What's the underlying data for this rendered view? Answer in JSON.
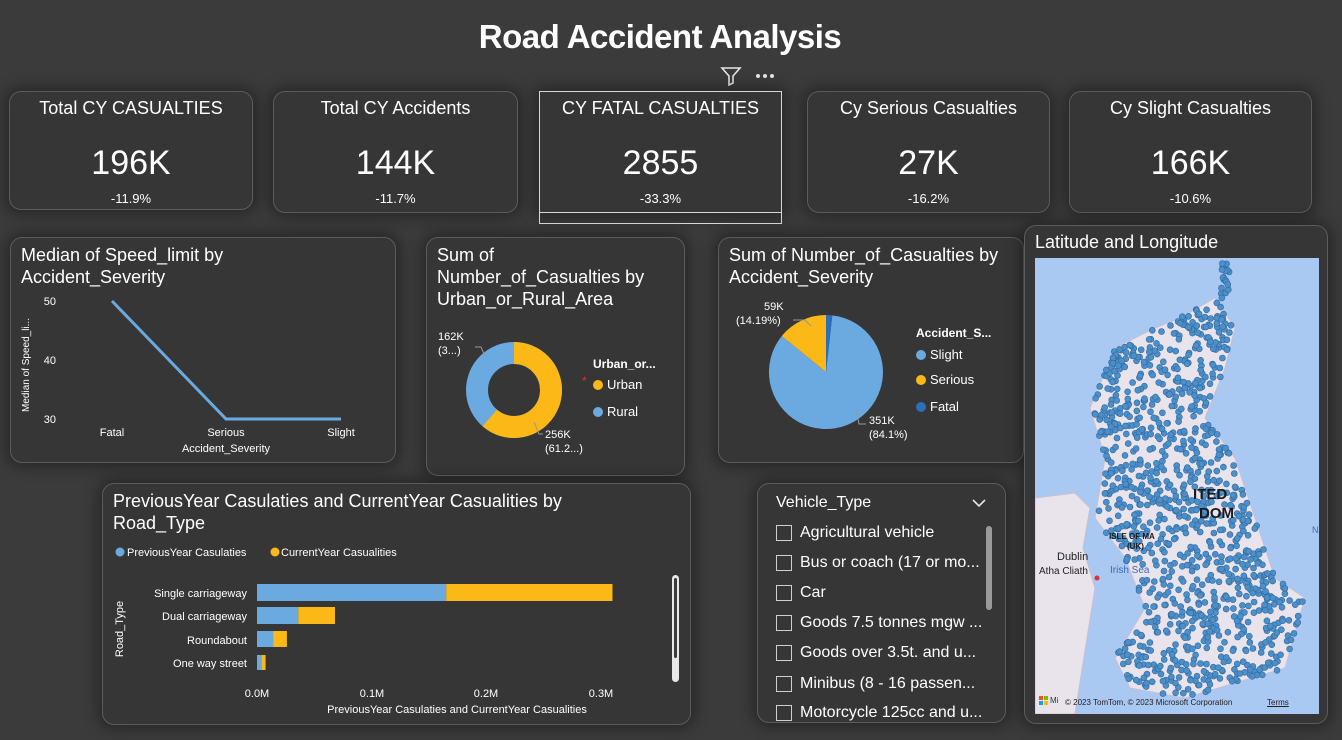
{
  "report": {
    "title": "Road Accident Analysis"
  },
  "toolbar": {
    "filter_icon": "filter-icon",
    "more_icon": "more-options-icon"
  },
  "kpis": [
    {
      "label": "Total CY CASUALTIES",
      "value": "196K",
      "delta": "-11.9%"
    },
    {
      "label": "Total CY Accidents",
      "value": "144K",
      "delta": "-11.7%"
    },
    {
      "label": "CY FATAL CASUALTIES",
      "value": "2855",
      "delta": "-33.3%"
    },
    {
      "label": "Cy Serious Casualties",
      "value": "27K",
      "delta": "-16.2%"
    },
    {
      "label": "Cy Slight Casualties",
      "value": "166K",
      "delta": "-10.6%"
    }
  ],
  "colors": {
    "blue": "#6aaae0",
    "orange": "#fcb817",
    "dark_blue": "#2a6fb8",
    "bg": "#3b3b3b",
    "card": "#363636"
  },
  "line_chart": {
    "title": "Median of Speed_limit by Accident_Severity",
    "chart_data": {
      "type": "line",
      "title": "Median of Speed_limit by Accident_Severity",
      "categories": [
        "Fatal",
        "Serious",
        "Slight"
      ],
      "values": [
        50,
        30,
        30
      ],
      "xlabel": "Accident_Severity",
      "ylabel": "Median of Speed_li...",
      "yticks": [
        "50",
        "40",
        "30"
      ],
      "ylim": [
        30,
        50
      ]
    }
  },
  "donut_chart": {
    "title": "Sum of Number_of_Casualties by Urban_or_Rural_Area",
    "legend_title": "Urban_or...",
    "chart_data": {
      "type": "pie",
      "title": "Sum of Number_of_Casualties by Urban_or_Rural_Area",
      "categories": [
        "Urban",
        "Rural"
      ],
      "values": [
        256,
        162
      ],
      "units": "K",
      "labels": [
        {
          "line1": "256K",
          "line2": "(61.2...)"
        },
        {
          "line1": "162K",
          "line2": "(3...)"
        }
      ]
    }
  },
  "pie_chart": {
    "title": "Sum of Number_of_Casualties by Accident_Severity",
    "legend_title": "Accident_S...",
    "chart_data": {
      "type": "pie",
      "title": "Sum of Number_of_Casualties by Accident_Severity",
      "categories": [
        "Slight",
        "Serious",
        "Fatal"
      ],
      "values": [
        351,
        59,
        7.4
      ],
      "units": "K",
      "labels": [
        {
          "line1": "351K",
          "line2": "(84.1%)"
        },
        {
          "line1": "59K",
          "line2": "(14.19%)"
        }
      ]
    }
  },
  "bar_chart": {
    "title": "PreviousYear Casulaties and CurrentYear Casualities by Road_Type",
    "legend": [
      "PreviousYear Casulaties",
      "CurrentYear Casualities"
    ],
    "chart_data": {
      "type": "bar",
      "title": "PreviousYear Casulaties and CurrentYear Casualities by Road_Type",
      "categories": [
        "Single carriageway",
        "Dual carriageway",
        "Roundabout",
        "One way street"
      ],
      "series": [
        {
          "name": "PreviousYear Casulaties",
          "values": [
            165000,
            36000,
            14000,
            4000
          ]
        },
        {
          "name": "CurrentYear Casualities",
          "values": [
            145000,
            32000,
            12000,
            3500
          ]
        }
      ],
      "xlabel": "PreviousYear Casulaties and CurrentYear Casualities",
      "ylabel": "Road_Type",
      "xticks": [
        "0.0M",
        "0.1M",
        "0.2M",
        "0.3M"
      ],
      "xlim": [
        0,
        0.3
      ]
    }
  },
  "slicer": {
    "title": "Vehicle_Type",
    "items": [
      "Agricultural vehicle",
      "Bus or coach (17 or mo...",
      "Car",
      "Goods 7.5 tonnes mgw ...",
      "Goods over 3.5t. and u...",
      "Minibus (8 - 16 passen...",
      "Motorcycle 125cc and u..."
    ]
  },
  "map": {
    "title": "Latitude and Longitude",
    "labels": {
      "country_part1": "ITED",
      "country_part2": "DOM",
      "isle_of_man": "ISLE OF MA",
      "uk": "(UK)",
      "dublin": "Dublin",
      "atha_cliath": "Atha Cliath",
      "irish_sea": "Irish Sea",
      "n_label": "N"
    },
    "attribution": "© 2023 TomTom, © 2023 Microsoft Corporation",
    "terms": "Terms",
    "ms_short": "Mi"
  }
}
